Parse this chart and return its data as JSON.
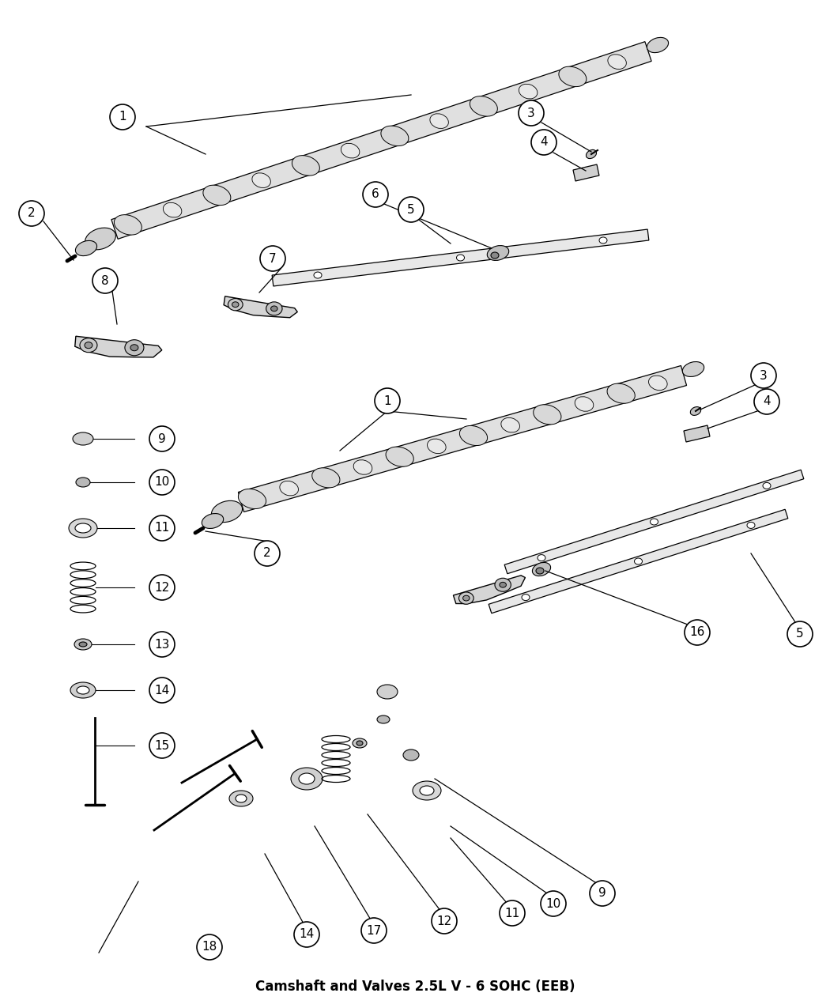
{
  "title": "Camshaft and Valves 2.5L V - 6 SOHC (EEB)",
  "bg_color": "#ffffff",
  "fig_width": 10.5,
  "fig_height": 12.75,
  "dpi": 100,
  "line_color": "#000000",
  "circle_bg": "#ffffff",
  "shaft_color": "#e0e0e0",
  "lobe_color": "#cccccc"
}
